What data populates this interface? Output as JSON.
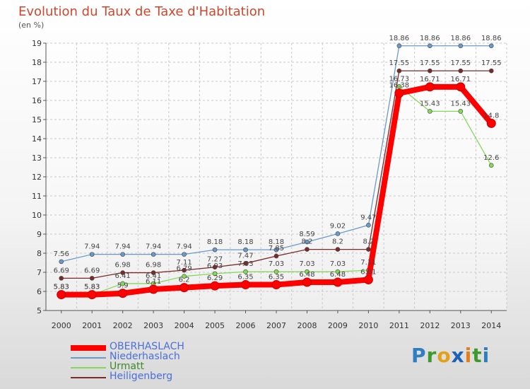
{
  "title": "Evolution du Taux de Taxe d'Habitation",
  "subtitle": "(en %)",
  "brand": [
    "P",
    "r",
    "o",
    "x",
    "i",
    "t",
    "i"
  ],
  "brand_colors": [
    "#2f7fc0",
    "#3f9a2c",
    "#e3a01a",
    "#1c61b5",
    "#e67c1a",
    "#3f9a2c",
    "#2f7fc0"
  ],
  "chart_data": {
    "type": "line",
    "x": [
      "2000",
      "2001",
      "2002",
      "2003",
      "2004",
      "2005",
      "2006",
      "2007",
      "2008",
      "2009",
      "2010",
      "2011",
      "2012",
      "2013",
      "2014"
    ],
    "ylim": [
      5,
      19
    ],
    "yticks": [
      "5",
      "6",
      "7",
      "8",
      "9",
      "10",
      "11",
      "12",
      "13",
      "14",
      "15",
      "16",
      "17",
      "18",
      "19"
    ],
    "grid": true,
    "legend_position": "bottom-left",
    "series": [
      {
        "name": "OBERHASLACH",
        "color": "#ff0000",
        "width": 8,
        "values": [
          5.83,
          5.83,
          5.9,
          6.11,
          6.2,
          6.29,
          6.35,
          6.35,
          6.48,
          6.48,
          6.61,
          16.38,
          16.71,
          16.71,
          14.8
        ],
        "labels": [
          "5.83",
          "5.83",
          "5.9",
          "6.11",
          "6.2",
          "6.29",
          "6.35",
          "6.35",
          "6.48",
          "6.48",
          "6.61",
          "16.38",
          "16.71",
          "16.71",
          "14.8"
        ]
      },
      {
        "name": "Niederhaslach",
        "color": "#6a9ac9",
        "width": 1.3,
        "values": [
          7.56,
          7.94,
          7.94,
          7.94,
          7.94,
          8.18,
          8.18,
          8.18,
          8.59,
          9.02,
          9.47,
          18.86,
          18.86,
          18.86,
          18.86
        ],
        "labels": [
          "7.56",
          "7.94",
          "7.94",
          "7.94",
          "7.94",
          "8.18",
          "8.18",
          "8.18",
          "8.59",
          "9.02",
          "9.47",
          "18.86",
          "18.86",
          "18.86",
          "18.86"
        ]
      },
      {
        "name": "Urmatt",
        "color": "#86d85a",
        "width": 1.3,
        "values": [
          5.83,
          5.83,
          6.41,
          6.41,
          6.79,
          6.93,
          7.03,
          7.03,
          7.03,
          7.03,
          7.11,
          16.73,
          15.43,
          15.43,
          12.6
        ],
        "labels": [
          "5.83",
          "5.83",
          "6.41",
          "6.41",
          "6.79",
          "6.93",
          "7.03",
          "7.03",
          "7.03",
          "7.03",
          "7.11",
          "16.73",
          "15.43",
          "15.43",
          "12.6"
        ]
      },
      {
        "name": "Heiligenberg",
        "color": "#7a2a2a",
        "width": 1.3,
        "values": [
          6.69,
          6.69,
          6.98,
          6.98,
          7.11,
          7.27,
          7.47,
          7.85,
          8.2,
          8.2,
          8.2,
          17.55,
          17.55,
          17.55,
          17.55
        ],
        "labels": [
          "6.69",
          "6.69",
          "6.98",
          "6.98",
          "7.11",
          "7.27",
          "7.47",
          "7.85",
          "8.2",
          "8.2",
          "8.2",
          "17.55",
          "17.55",
          "17.55",
          "17.55"
        ]
      }
    ]
  }
}
